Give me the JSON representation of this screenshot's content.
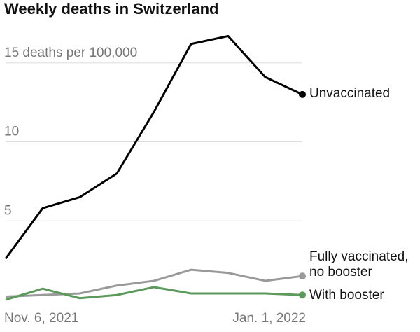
{
  "chart_data": {
    "type": "line",
    "title": "Weekly deaths in Switzerland",
    "categories": [
      "Nov. 6, 2021",
      null,
      null,
      null,
      null,
      null,
      null,
      null,
      "Jan. 1, 2022"
    ],
    "series": [
      {
        "name": "Unvaccinated",
        "color": "#000000",
        "values": [
          2.6,
          5.8,
          6.5,
          8.0,
          11.9,
          16.2,
          16.7,
          14.1,
          13.0
        ]
      },
      {
        "name": "Fully vaccinated, no booster",
        "color": "#999999",
        "values": [
          0.2,
          0.3,
          0.4,
          0.9,
          1.2,
          1.9,
          1.7,
          1.2,
          1.5
        ]
      },
      {
        "name": "With booster",
        "color": "#5b9a5b",
        "values": [
          0.0,
          0.7,
          0.1,
          0.3,
          0.8,
          0.4,
          0.4,
          0.4,
          0.3
        ]
      }
    ],
    "ylim": [
      0,
      17
    ],
    "yticks": [
      5,
      10,
      {
        "value": 15,
        "label": "15 deaths per 100,000"
      }
    ],
    "grid": true
  }
}
